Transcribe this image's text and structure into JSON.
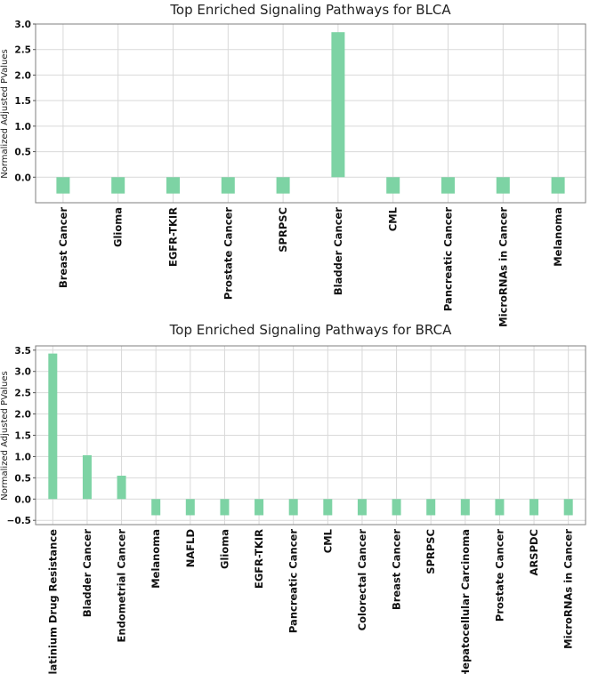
{
  "chart_data": [
    {
      "type": "bar",
      "title": "Top Enriched Signaling Pathways for BLCA",
      "xlabel": "",
      "ylabel": "Normalized Adjusted PValues",
      "categories": [
        "Breast Cancer",
        "Glioma",
        "EGFR-TKIR",
        "Prostate Cancer",
        "SPRPSC",
        "Bladder Cancer",
        "CML",
        "Pancreatic Cancer",
        "MicroRNAs in Cancer",
        "Melanoma"
      ],
      "values": [
        -0.32,
        -0.32,
        -0.32,
        -0.32,
        -0.32,
        2.84,
        -0.32,
        -0.32,
        -0.32,
        -0.32
      ],
      "ylim": [
        -0.5,
        3.0
      ],
      "yticks": [
        0.0,
        0.5,
        1.0,
        1.5,
        2.0,
        2.5,
        3.0
      ],
      "ytick_labels": [
        "0.0",
        "0.5",
        "1.0",
        "1.5",
        "2.0",
        "2.5",
        "3.0"
      ],
      "grid": true,
      "bar_color": "#7dd3a4"
    },
    {
      "type": "bar",
      "title": "Top Enriched Signaling Pathways for BRCA",
      "xlabel": "",
      "ylabel": "Normalized Adjusted PValues",
      "categories": [
        "Platinium Drug Resistance",
        "Bladder Cancer",
        "Endometrial Cancer",
        "Melanoma",
        "NAFLD",
        "Glioma",
        "EGFR-TKIR",
        "Pancreatic Cancer",
        "CML",
        "Colorectal Cancer",
        "Breast Cancer",
        "SPRPSC",
        "Hepatocellular Carcinoma",
        "Prostate Cancer",
        "ARSPDC",
        "MicroRNAs in Cancer"
      ],
      "values": [
        3.42,
        1.03,
        0.55,
        -0.38,
        -0.38,
        -0.38,
        -0.38,
        -0.38,
        -0.38,
        -0.38,
        -0.38,
        -0.38,
        -0.38,
        -0.38,
        -0.38,
        -0.38
      ],
      "ylim": [
        -0.6,
        3.6
      ],
      "yticks": [
        -0.5,
        0.0,
        0.5,
        1.0,
        1.5,
        2.0,
        2.5,
        3.0,
        3.5
      ],
      "ytick_labels": [
        "−0.5",
        "0.0",
        "0.5",
        "1.0",
        "1.5",
        "2.0",
        "2.5",
        "3.0",
        "3.5"
      ],
      "grid": true,
      "bar_color": "#7dd3a4"
    }
  ]
}
